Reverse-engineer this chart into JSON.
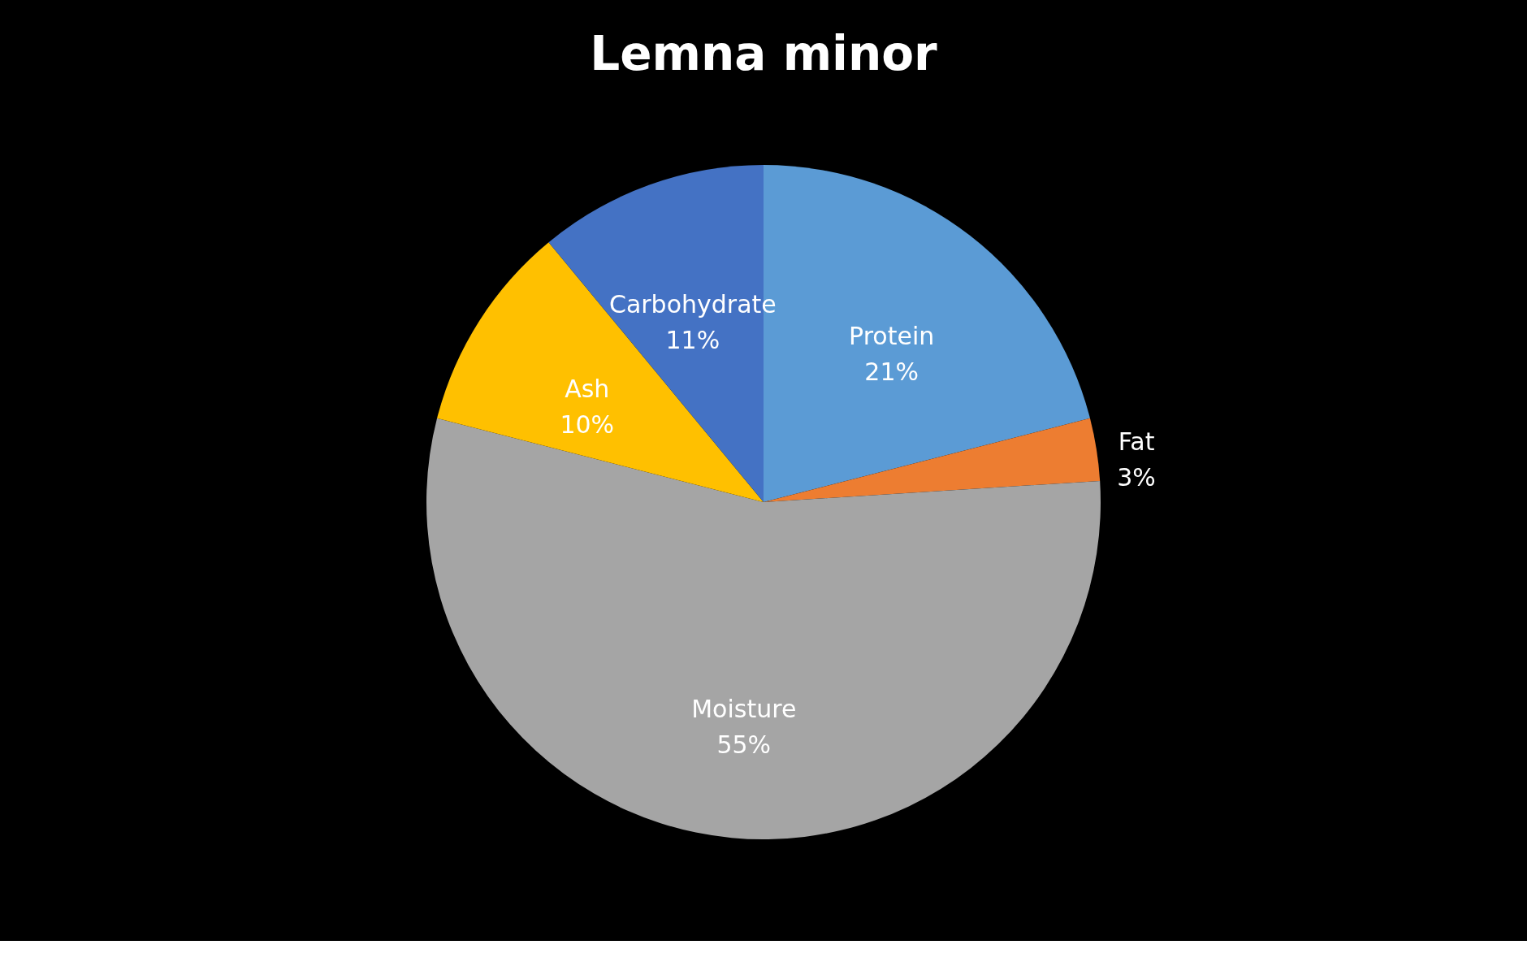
{
  "chart_data": {
    "type": "pie",
    "title": "Lemna minor",
    "categories": [
      "Protein",
      "Fat",
      "Moisture",
      "Ash",
      "Carbohydrate"
    ],
    "values": [
      21,
      3,
      55,
      10,
      11
    ],
    "value_labels": [
      "21%",
      "3%",
      "55%",
      "10%",
      "11%"
    ],
    "colors": [
      "#5b9bd5",
      "#ed7d31",
      "#a5a5a5",
      "#ffc000",
      "#4472c4"
    ],
    "data_labels": true,
    "legend": false
  }
}
